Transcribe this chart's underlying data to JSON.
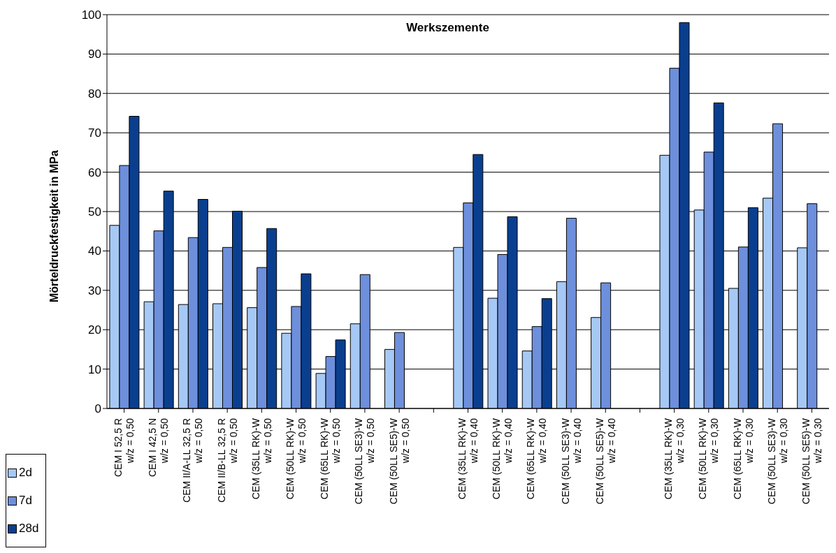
{
  "chart_data": {
    "type": "bar",
    "title": "Werkszemente",
    "ylabel": "Mörteldruckfestigkeit in MPa",
    "categories": [
      "CEM I 52,5 R\nw/z = 0,50",
      "CEM I 42,5 N\nw/z = 0,50",
      "CEM II/A-LL 32,5 R\nw/z = 0,50",
      "CEM II/B-LL 32,5 R\nw/z = 0,50",
      "CEM (35LL RK)-W\nw/z = 0,50",
      "CEM (50LL RK)-W\nw/z = 0,50",
      "CEM (65LL RK)-W\nw/z = 0,50",
      "CEM (50LL SE3)-W\nw/z = 0,50",
      "CEM (50LL SE5)-W\nw/z = 0,50",
      null,
      "CEM (35LL RK)-W\nw/z = 0,40",
      "CEM (50LL RK)-W\nw/z = 0,40",
      "CEM (65LL RK)-W\nw/z = 0,40",
      "CEM (50LL SE3)-W\nw/z = 0,40",
      "CEM (50LL SE5)-W\nw/z = 0,40",
      null,
      "CEM (35LL RK)-W\nw/z = 0,30",
      "CEM (50LL RK)-W\nw/z = 0,30",
      "CEM (65LL RK)-W\nw/z = 0,30",
      "CEM (50LL SE3)-W\nw/z = 0,30",
      "CEM (50LL SE5)-W\nw/z = 0,30"
    ],
    "series": [
      {
        "name": "2d",
        "color": "#a6c8f5",
        "values": [
          46.5,
          27.1,
          26.4,
          26.6,
          25.6,
          19.1,
          8.9,
          21.5,
          15.0,
          null,
          40.9,
          28.0,
          14.6,
          32.2,
          23.1,
          null,
          64.3,
          50.4,
          30.5,
          53.4,
          40.8
        ]
      },
      {
        "name": "7d",
        "color": "#6d8fdc",
        "values": [
          61.7,
          45.1,
          43.4,
          40.9,
          35.8,
          25.9,
          13.2,
          34.0,
          19.3,
          null,
          52.2,
          39.1,
          20.8,
          48.3,
          31.9,
          null,
          86.4,
          65.1,
          41.0,
          72.3,
          52.0
        ]
      },
      {
        "name": "28d",
        "color": "#0a3f8f",
        "values": [
          74.2,
          55.2,
          53.1,
          50.1,
          45.7,
          34.2,
          17.4,
          null,
          null,
          null,
          64.5,
          48.7,
          27.9,
          null,
          null,
          null,
          98.0,
          77.6,
          51.0,
          null,
          null
        ]
      }
    ],
    "ylim": [
      0,
      100
    ],
    "yticks": [
      0,
      10,
      20,
      30,
      40,
      50,
      60,
      70,
      80,
      90,
      100
    ],
    "grid": "y",
    "legend": "bottom left"
  }
}
